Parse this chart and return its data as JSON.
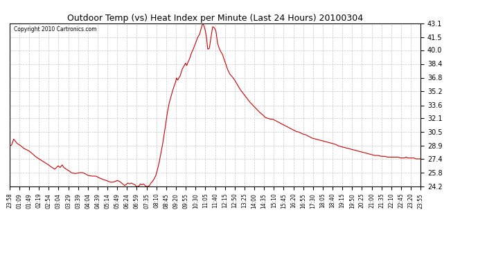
{
  "title": "Outdoor Temp (vs) Heat Index per Minute (Last 24 Hours) 20100304",
  "copyright": "Copyright 2010 Cartronics.com",
  "line_color": "#cc0000",
  "bg_color": "#ffffff",
  "grid_color": "#c0c0c0",
  "ylim": [
    24.2,
    43.1
  ],
  "yticks": [
    24.2,
    25.8,
    27.4,
    28.9,
    30.5,
    32.1,
    33.6,
    35.2,
    36.8,
    38.4,
    40.0,
    41.5,
    43.1
  ],
  "xtick_labels": [
    "23:58",
    "01:09",
    "01:49",
    "02:19",
    "02:54",
    "03:04",
    "03:29",
    "03:39",
    "04:04",
    "04:39",
    "05:14",
    "05:49",
    "06:24",
    "06:59",
    "07:35",
    "08:10",
    "08:45",
    "09:20",
    "09:55",
    "10:30",
    "11:05",
    "11:40",
    "12:15",
    "12:50",
    "13:25",
    "14:00",
    "14:35",
    "15:10",
    "15:45",
    "16:20",
    "16:55",
    "17:30",
    "18:05",
    "18:40",
    "19:15",
    "19:50",
    "20:25",
    "21:00",
    "21:35",
    "22:10",
    "22:45",
    "23:20",
    "23:55"
  ],
  "keypoints": [
    [
      0.0,
      28.9
    ],
    [
      0.005,
      29.0
    ],
    [
      0.01,
      29.7
    ],
    [
      0.018,
      29.2
    ],
    [
      0.025,
      29.0
    ],
    [
      0.035,
      28.6
    ],
    [
      0.048,
      28.3
    ],
    [
      0.055,
      28.0
    ],
    [
      0.065,
      27.6
    ],
    [
      0.075,
      27.3
    ],
    [
      0.085,
      27.0
    ],
    [
      0.095,
      26.7
    ],
    [
      0.1,
      26.5
    ],
    [
      0.11,
      26.2
    ],
    [
      0.118,
      26.6
    ],
    [
      0.123,
      26.4
    ],
    [
      0.128,
      26.7
    ],
    [
      0.132,
      26.4
    ],
    [
      0.138,
      26.2
    ],
    [
      0.145,
      26.0
    ],
    [
      0.15,
      25.8
    ],
    [
      0.16,
      25.7
    ],
    [
      0.17,
      25.8
    ],
    [
      0.178,
      25.8
    ],
    [
      0.183,
      25.7
    ],
    [
      0.19,
      25.5
    ],
    [
      0.2,
      25.4
    ],
    [
      0.21,
      25.4
    ],
    [
      0.218,
      25.2
    ],
    [
      0.228,
      25.0
    ],
    [
      0.235,
      24.9
    ],
    [
      0.24,
      24.8
    ],
    [
      0.245,
      24.7
    ],
    [
      0.252,
      24.7
    ],
    [
      0.258,
      24.8
    ],
    [
      0.262,
      24.9
    ],
    [
      0.267,
      24.8
    ],
    [
      0.27,
      24.7
    ],
    [
      0.275,
      24.5
    ],
    [
      0.28,
      24.3
    ],
    [
      0.285,
      24.5
    ],
    [
      0.288,
      24.6
    ],
    [
      0.292,
      24.5
    ],
    [
      0.296,
      24.6
    ],
    [
      0.3,
      24.5
    ],
    [
      0.305,
      24.4
    ],
    [
      0.308,
      24.2
    ],
    [
      0.312,
      24.2
    ],
    [
      0.316,
      24.3
    ],
    [
      0.318,
      24.5
    ],
    [
      0.322,
      24.4
    ],
    [
      0.325,
      24.5
    ],
    [
      0.328,
      24.4
    ],
    [
      0.332,
      24.2
    ],
    [
      0.336,
      24.2
    ],
    [
      0.34,
      24.3
    ],
    [
      0.344,
      24.6
    ],
    [
      0.348,
      24.8
    ],
    [
      0.352,
      25.1
    ],
    [
      0.356,
      25.5
    ],
    [
      0.36,
      26.2
    ],
    [
      0.364,
      27.0
    ],
    [
      0.368,
      28.0
    ],
    [
      0.372,
      29.0
    ],
    [
      0.376,
      30.2
    ],
    [
      0.38,
      31.5
    ],
    [
      0.384,
      32.8
    ],
    [
      0.388,
      33.8
    ],
    [
      0.392,
      34.5
    ],
    [
      0.396,
      35.2
    ],
    [
      0.4,
      35.8
    ],
    [
      0.404,
      36.3
    ],
    [
      0.406,
      36.8
    ],
    [
      0.409,
      36.5
    ],
    [
      0.412,
      36.8
    ],
    [
      0.415,
      37.0
    ],
    [
      0.42,
      37.8
    ],
    [
      0.425,
      38.2
    ],
    [
      0.428,
      38.5
    ],
    [
      0.431,
      38.2
    ],
    [
      0.434,
      38.6
    ],
    [
      0.438,
      39.0
    ],
    [
      0.442,
      39.6
    ],
    [
      0.446,
      40.0
    ],
    [
      0.45,
      40.5
    ],
    [
      0.454,
      41.0
    ],
    [
      0.458,
      41.5
    ],
    [
      0.462,
      41.8
    ],
    [
      0.466,
      42.5
    ],
    [
      0.47,
      43.1
    ],
    [
      0.473,
      42.8
    ],
    [
      0.476,
      42.3
    ],
    [
      0.479,
      41.5
    ],
    [
      0.482,
      40.1
    ],
    [
      0.486,
      40.2
    ],
    [
      0.49,
      41.5
    ],
    [
      0.494,
      42.7
    ],
    [
      0.498,
      42.6
    ],
    [
      0.502,
      42.2
    ],
    [
      0.506,
      40.8
    ],
    [
      0.51,
      40.2
    ],
    [
      0.514,
      39.8
    ],
    [
      0.518,
      39.5
    ],
    [
      0.522,
      38.9
    ],
    [
      0.526,
      38.4
    ],
    [
      0.53,
      37.8
    ],
    [
      0.536,
      37.2
    ],
    [
      0.542,
      36.9
    ],
    [
      0.548,
      36.5
    ],
    [
      0.554,
      36.0
    ],
    [
      0.56,
      35.5
    ],
    [
      0.568,
      35.0
    ],
    [
      0.576,
      34.5
    ],
    [
      0.584,
      34.0
    ],
    [
      0.592,
      33.6
    ],
    [
      0.6,
      33.2
    ],
    [
      0.608,
      32.8
    ],
    [
      0.616,
      32.5
    ],
    [
      0.622,
      32.2
    ],
    [
      0.628,
      32.1
    ],
    [
      0.634,
      32.0
    ],
    [
      0.64,
      32.0
    ],
    [
      0.648,
      31.8
    ],
    [
      0.656,
      31.6
    ],
    [
      0.664,
      31.4
    ],
    [
      0.672,
      31.2
    ],
    [
      0.68,
      31.0
    ],
    [
      0.688,
      30.8
    ],
    [
      0.696,
      30.6
    ],
    [
      0.704,
      30.5
    ],
    [
      0.712,
      30.3
    ],
    [
      0.72,
      30.2
    ],
    [
      0.728,
      30.0
    ],
    [
      0.736,
      29.8
    ],
    [
      0.744,
      29.7
    ],
    [
      0.752,
      29.6
    ],
    [
      0.76,
      29.5
    ],
    [
      0.768,
      29.4
    ],
    [
      0.776,
      29.3
    ],
    [
      0.784,
      29.2
    ],
    [
      0.792,
      29.1
    ],
    [
      0.8,
      28.9
    ],
    [
      0.808,
      28.8
    ],
    [
      0.816,
      28.7
    ],
    [
      0.824,
      28.6
    ],
    [
      0.832,
      28.5
    ],
    [
      0.84,
      28.4
    ],
    [
      0.848,
      28.3
    ],
    [
      0.856,
      28.2
    ],
    [
      0.864,
      28.1
    ],
    [
      0.872,
      28.0
    ],
    [
      0.88,
      27.9
    ],
    [
      0.888,
      27.8
    ],
    [
      0.896,
      27.8
    ],
    [
      0.904,
      27.7
    ],
    [
      0.912,
      27.7
    ],
    [
      0.92,
      27.6
    ],
    [
      0.928,
      27.6
    ],
    [
      0.936,
      27.6
    ],
    [
      0.944,
      27.6
    ],
    [
      0.952,
      27.5
    ],
    [
      0.96,
      27.5
    ],
    [
      0.965,
      27.6
    ],
    [
      0.968,
      27.5
    ],
    [
      0.972,
      27.5
    ],
    [
      0.976,
      27.5
    ],
    [
      0.98,
      27.5
    ],
    [
      0.984,
      27.5
    ],
    [
      0.988,
      27.4
    ],
    [
      0.992,
      27.4
    ],
    [
      0.996,
      27.4
    ],
    [
      1.0,
      27.4
    ]
  ]
}
